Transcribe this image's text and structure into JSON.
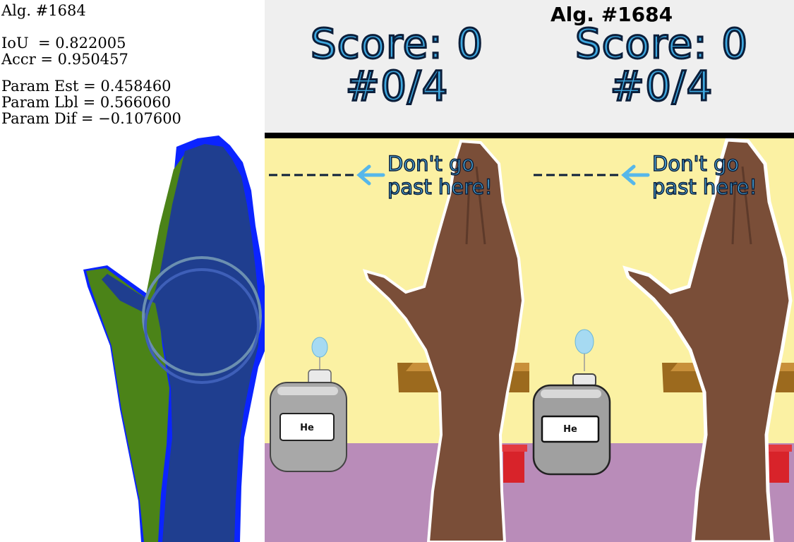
{
  "metrics": {
    "algorithm": "Alg. #1684",
    "iou": "IoU  = 0.822005",
    "accuracy": "Accr = 0.950457",
    "param_est": "Param Est = 0.458460",
    "param_lbl": "Param Lbl = 0.566060",
    "param_dif": "Param Dif = −0.107600"
  },
  "hud": {
    "algorithm": "Alg. #1684",
    "left": {
      "score": "Score: 0",
      "progress": "#0/4"
    },
    "right": {
      "score": "Score: 0",
      "progress": "#0/4"
    }
  },
  "game": {
    "warning_line1": "Don't go",
    "warning_line2": "past here!",
    "balloon_label": "He"
  },
  "colors": {
    "hud_text": "#3ea8e0",
    "wall": "#fbf1a3",
    "floor": "#b98cb9",
    "mask_estimate": "#1f3e8f",
    "mask_label": "#4b8318",
    "mask_edge": "#0b24ff"
  }
}
